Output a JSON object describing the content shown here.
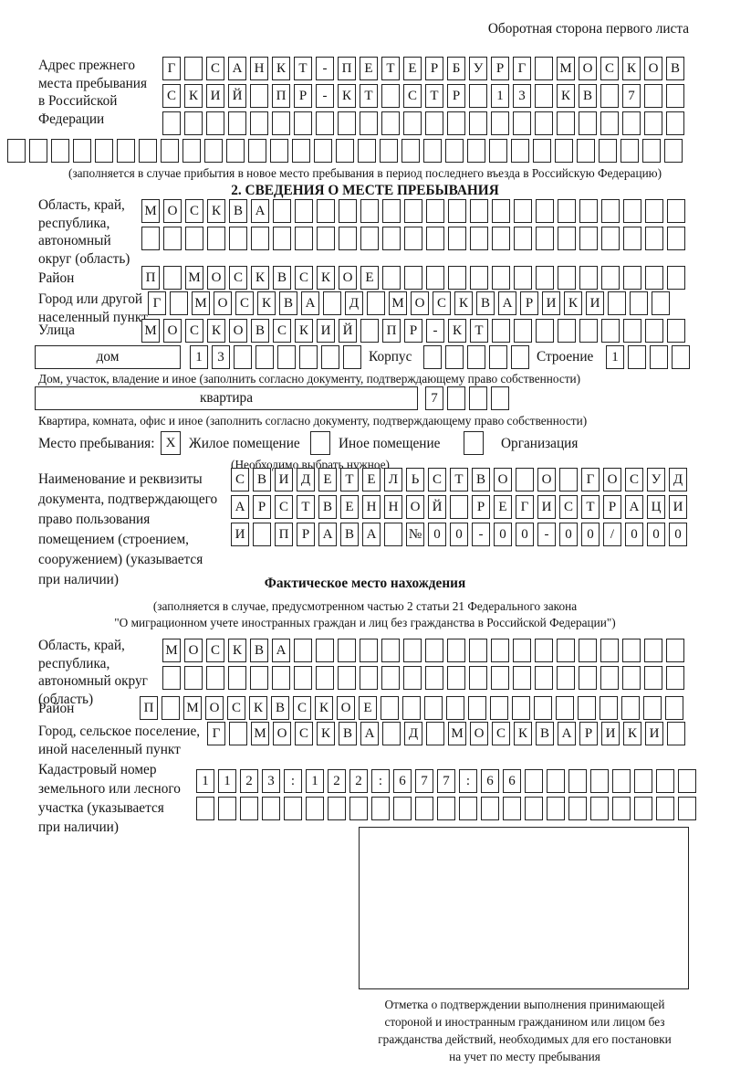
{
  "page": {
    "header_note": "Оборотная сторона первого листа"
  },
  "prev_address": {
    "label_lines": [
      "Адрес прежнего",
      "места пребывания",
      "в Российской",
      "Федерации"
    ],
    "rows": [
      {
        "text": "Г САНКТ-ПЕТЕРБУРГ МОСКОВ",
        "cells": 24
      },
      {
        "text": "СКИЙ ПР-КТ СТР 13 КВ 7",
        "cells": 24
      },
      {
        "text": "",
        "cells": 24
      },
      {
        "text": "",
        "cells": 31
      }
    ],
    "caption": "(заполняется в случае прибытия в новое место пребывания в период последнего въезда в Российскую Федерацию)"
  },
  "section2": {
    "title": "2. СВЕДЕНИЯ О МЕСТЕ ПРЕБЫВАНИЯ",
    "region": {
      "label_lines": [
        "Область, край,",
        "республика,",
        "автономный",
        "округ (область)"
      ],
      "rows": [
        {
          "text": "МОСКВА",
          "cells": 25
        },
        {
          "text": "",
          "cells": 25
        }
      ]
    },
    "district": {
      "label": "Район",
      "row": {
        "text": "П МОСКВСКОЕ",
        "cells": 25
      }
    },
    "city": {
      "label_lines": [
        "Город или другой",
        "населенный пункт"
      ],
      "row": {
        "text": "Г МОСКВА Д МОСКВАРИКИ",
        "cells": 24
      }
    },
    "street": {
      "label": "Улица",
      "row": {
        "text": "МОСКОВСКИЙ ПР-КТ",
        "cells": 25
      }
    },
    "house": {
      "box_label": "дом",
      "house_row": {
        "text": "13",
        "cells": 8
      },
      "korpus_label": "Корпус",
      "korpus_row": {
        "text": "",
        "cells": 5
      },
      "stroenie_label": "Строение",
      "stroenie_row": {
        "text": "1",
        "cells": 4
      },
      "caption": "Дом, участок, владение и иное (заполнить согласно документу, подтверждающему право собственности)"
    },
    "apartment": {
      "box_label": "квартира",
      "row": {
        "text": "7",
        "cells": 4
      },
      "caption": "Квартира, комната, офис и иное (заполнить согласно документу, подтверждающему право собственности)"
    },
    "stay_type": {
      "label": "Место пребывания:",
      "options": [
        {
          "label": "Жилое помещение",
          "checked": "X"
        },
        {
          "label": "Иное помещение",
          "checked": ""
        },
        {
          "label": "Организация",
          "checked": ""
        }
      ],
      "note": "(Необходимо выбрать нужное)"
    },
    "document": {
      "label_lines": [
        "Наименование и реквизиты",
        "документа, подтверждающего",
        "право пользования",
        "помещением (строением,",
        "сооружением) (указывается",
        "при наличии)"
      ],
      "rows": [
        {
          "text": "СВИДЕТЕЛЬСТВО О ГОСУД",
          "cells": 21
        },
        {
          "text": "АРСТВЕННОЙ РЕГИСТРАЦИ",
          "cells": 21
        },
        {
          "text": "И ПРАВА №00-00-00/000",
          "cells": 21
        }
      ]
    }
  },
  "actual_location": {
    "title": "Фактическое место нахождения",
    "caption_lines": [
      "(заполняется в случае, предусмотренном частью 2 статьи 21 Федерального закона",
      "\"О миграционном учете иностранных граждан и лиц без гражданства в Российской Федерации\")"
    ],
    "region": {
      "label_lines": [
        "Область, край,",
        "республика,",
        "автономный округ",
        "(область)"
      ],
      "rows": [
        {
          "text": "МОСКВА",
          "cells": 24
        },
        {
          "text": "",
          "cells": 24
        }
      ]
    },
    "district": {
      "label": "Район",
      "row": {
        "text": "П МОСКВСКОЕ",
        "cells": 25
      }
    },
    "city": {
      "label_lines": [
        "Город, сельское поселение,",
        "иной населенный пункт"
      ],
      "row": {
        "text": "Г МОСКВА Д МОСКВАРИКИ",
        "cells": 22
      }
    },
    "cadastral": {
      "label_lines": [
        "Кадастровый номер",
        "земельного или лесного",
        "участка (указывается",
        "при наличии)"
      ],
      "rows": [
        {
          "text": "1123:122:677:66",
          "cells": 23
        },
        {
          "text": "",
          "cells": 23
        }
      ]
    },
    "stamp_caption_lines": [
      "Отметка о подтверждении выполнения принимающей",
      "стороной и иностранным гражданином или лицом без",
      "гражданства действий, необходимых для его постановки",
      "на учет по месту пребывания"
    ]
  }
}
